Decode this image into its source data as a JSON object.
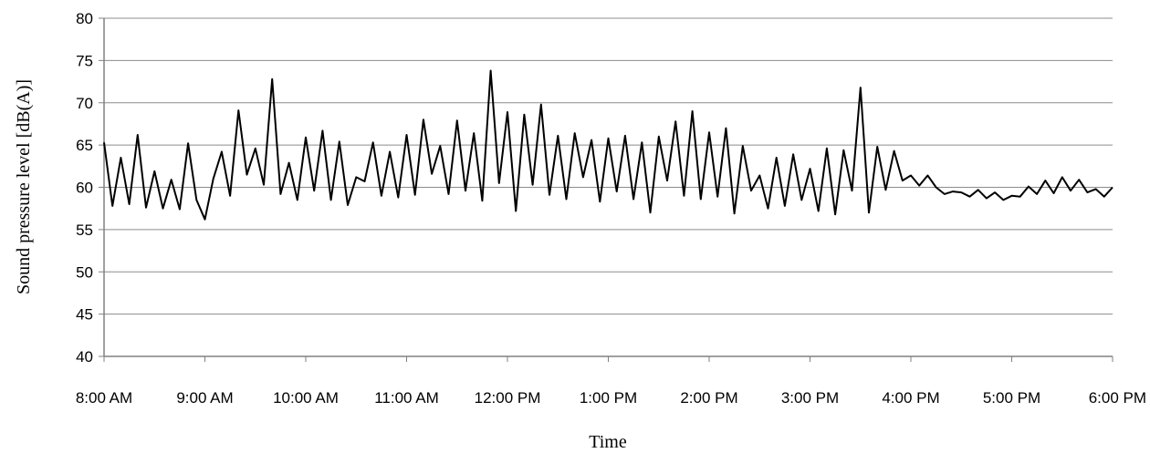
{
  "chart_data": {
    "type": "line",
    "title": "",
    "xlabel": "Time",
    "ylabel": "Sound pressure level [dB(A)]",
    "ylim": [
      40,
      80
    ],
    "yticks": [
      "40",
      "45",
      "50",
      "55",
      "60",
      "65",
      "70",
      "75",
      "80"
    ],
    "xlim": [
      "8:00 AM",
      "6:00 PM"
    ],
    "xticks": [
      "8:00 AM",
      "9:00 AM",
      "10:00 AM",
      "11:00 AM",
      "12:00 PM",
      "1:00 PM",
      "2:00 PM",
      "3:00 PM",
      "4:00 PM",
      "5:00 PM",
      "6:00 PM"
    ],
    "grid": "horizontal",
    "legend": "none",
    "colors": {
      "line": "#000000",
      "grid": "#8c8c8c",
      "axis": "#808080"
    },
    "series": [
      {
        "x": [
          "8:00 AM",
          "8:05 AM",
          "8:10 AM",
          "8:15 AM",
          "8:20 AM",
          "8:25 AM",
          "8:30 AM",
          "8:35 AM",
          "8:40 AM",
          "8:45 AM",
          "8:50 AM",
          "8:55 AM",
          "9:00 AM",
          "9:05 AM",
          "9:10 AM",
          "9:15 AM",
          "9:20 AM",
          "9:25 AM",
          "9:30 AM",
          "9:35 AM",
          "9:40 AM",
          "9:45 AM",
          "9:50 AM",
          "9:55 AM",
          "10:00 AM",
          "10:05 AM",
          "10:10 AM",
          "10:15 AM",
          "10:20 AM",
          "10:25 AM",
          "10:30 AM",
          "10:35 AM",
          "10:40 AM",
          "10:45 AM",
          "10:50 AM",
          "10:55 AM",
          "11:00 AM",
          "11:05 AM",
          "11:10 AM",
          "11:15 AM",
          "11:20 AM",
          "11:25 AM",
          "11:30 AM",
          "11:35 AM",
          "11:40 AM",
          "11:45 AM",
          "11:50 AM",
          "11:55 AM",
          "12:00 PM",
          "12:05 PM",
          "12:10 PM",
          "12:15 PM",
          "12:20 PM",
          "12:25 PM",
          "12:30 PM",
          "12:35 PM",
          "12:40 PM",
          "12:45 PM",
          "12:50 PM",
          "12:55 PM",
          "1:00 PM",
          "1:05 PM",
          "1:10 PM",
          "1:15 PM",
          "1:20 PM",
          "1:25 PM",
          "1:30 PM",
          "1:35 PM",
          "1:40 PM",
          "1:45 PM",
          "1:50 PM",
          "1:55 PM",
          "2:00 PM",
          "2:05 PM",
          "2:10 PM",
          "2:15 PM",
          "2:20 PM",
          "2:25 PM",
          "2:30 PM",
          "2:35 PM",
          "2:40 PM",
          "2:45 PM",
          "2:50 PM",
          "2:55 PM",
          "3:00 PM",
          "3:05 PM",
          "3:10 PM",
          "3:15 PM",
          "3:20 PM",
          "3:25 PM",
          "3:30 PM",
          "3:35 PM",
          "3:40 PM",
          "3:45 PM",
          "3:50 PM",
          "3:55 PM",
          "4:00 PM",
          "4:05 PM",
          "4:10 PM",
          "4:15 PM",
          "4:20 PM",
          "4:25 PM",
          "4:30 PM",
          "4:35 PM",
          "4:40 PM",
          "4:45 PM",
          "4:50 PM",
          "4:55 PM",
          "5:00 PM",
          "5:05 PM",
          "5:10 PM",
          "5:15 PM",
          "5:20 PM",
          "5:25 PM",
          "5:30 PM",
          "5:35 PM",
          "5:40 PM",
          "5:45 PM",
          "5:50 PM",
          "5:55 PM",
          "6:00 PM"
        ],
        "values": [
          65.3,
          57.8,
          63.5,
          58.0,
          66.2,
          57.6,
          61.9,
          57.5,
          60.9,
          57.4,
          65.2,
          58.5,
          56.2,
          61.0,
          64.2,
          59.0,
          69.1,
          61.5,
          64.6,
          60.3,
          72.8,
          59.2,
          62.9,
          58.5,
          65.9,
          59.6,
          66.7,
          58.5,
          65.4,
          57.9,
          61.2,
          60.7,
          65.3,
          59.0,
          64.2,
          58.8,
          66.2,
          59.1,
          68.0,
          61.6,
          64.9,
          59.2,
          67.9,
          59.6,
          66.4,
          58.4,
          73.8,
          60.5,
          68.9,
          57.2,
          68.6,
          60.3,
          69.8,
          59.1,
          66.1,
          58.6,
          66.4,
          61.2,
          65.6,
          58.3,
          65.8,
          59.5,
          66.1,
          58.6,
          65.3,
          57.0,
          66.0,
          60.8,
          67.8,
          59.0,
          69.0,
          58.6,
          66.5,
          58.9,
          67.0,
          56.9,
          64.9,
          59.6,
          61.4,
          57.5,
          63.5,
          57.8,
          63.9,
          58.5,
          62.2,
          57.2,
          64.6,
          56.8,
          64.4,
          59.6,
          71.8,
          57.0,
          64.8,
          59.7,
          64.3,
          60.8,
          61.4,
          60.2,
          61.4,
          60.0,
          59.2,
          59.5,
          59.4,
          58.9,
          59.7,
          58.7,
          59.4,
          58.5,
          59.0,
          58.9,
          60.1,
          59.2,
          60.8,
          59.3,
          61.2,
          59.6,
          60.9,
          59.4,
          59.8,
          58.9,
          60.0
        ]
      }
    ]
  }
}
